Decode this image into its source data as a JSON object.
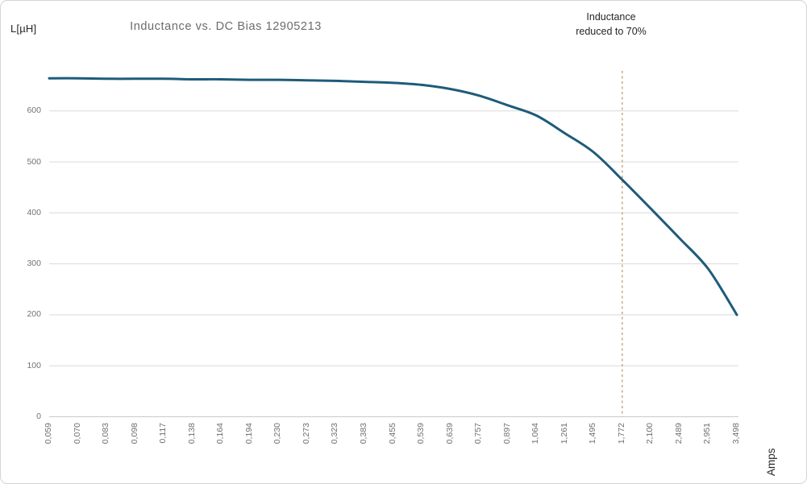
{
  "chart_data": {
    "type": "line",
    "title": "Inductance vs. DC Bias 12905213",
    "y_axis_label": "L[µH]",
    "x_axis_label": "Amps",
    "categories": [
      "0,059",
      "0,070",
      "0,083",
      "0,098",
      "0,117",
      "0,138",
      "0,164",
      "0,194",
      "0,230",
      "0,273",
      "0,323",
      "0,383",
      "0,455",
      "0,539",
      "0,639",
      "0,757",
      "0,897",
      "1,064",
      "1,261",
      "1,495",
      "1,772",
      "2,100",
      "2,489",
      "2,951",
      "3,498"
    ],
    "x_values": [
      0.059,
      0.07,
      0.083,
      0.098,
      0.117,
      0.138,
      0.164,
      0.194,
      0.23,
      0.273,
      0.323,
      0.383,
      0.455,
      0.539,
      0.639,
      0.757,
      0.897,
      1.064,
      1.261,
      1.495,
      1.772,
      2.1,
      2.489,
      2.951,
      3.498
    ],
    "series": [
      {
        "name": "Inductance",
        "values": [
          664,
          664,
          663,
          663,
          663,
          662,
          662,
          661,
          661,
          660,
          659,
          657,
          655,
          651,
          643,
          630,
          611,
          591,
          556,
          519,
          465,
          408,
          350,
          290,
          200
        ]
      }
    ],
    "yticks": [
      0,
      100,
      200,
      300,
      400,
      500,
      600
    ],
    "ylim": [
      0,
      700
    ],
    "grid": "horizontal",
    "legend": "none",
    "annotation": {
      "text_line1": "Inductance",
      "text_line2": "reduced to 70%",
      "marker_category": "1,772",
      "marker_category_index": 20,
      "marker_style": "dashed-vertical-line"
    },
    "colors": {
      "line": "#1e5b7a",
      "marker_line": "#cda176",
      "grid": "#d9d9d9",
      "axis": "#c9c9c9",
      "tick_text": "#737373",
      "title_text": "#6b6b6b",
      "annotation_text": "#262626"
    }
  }
}
